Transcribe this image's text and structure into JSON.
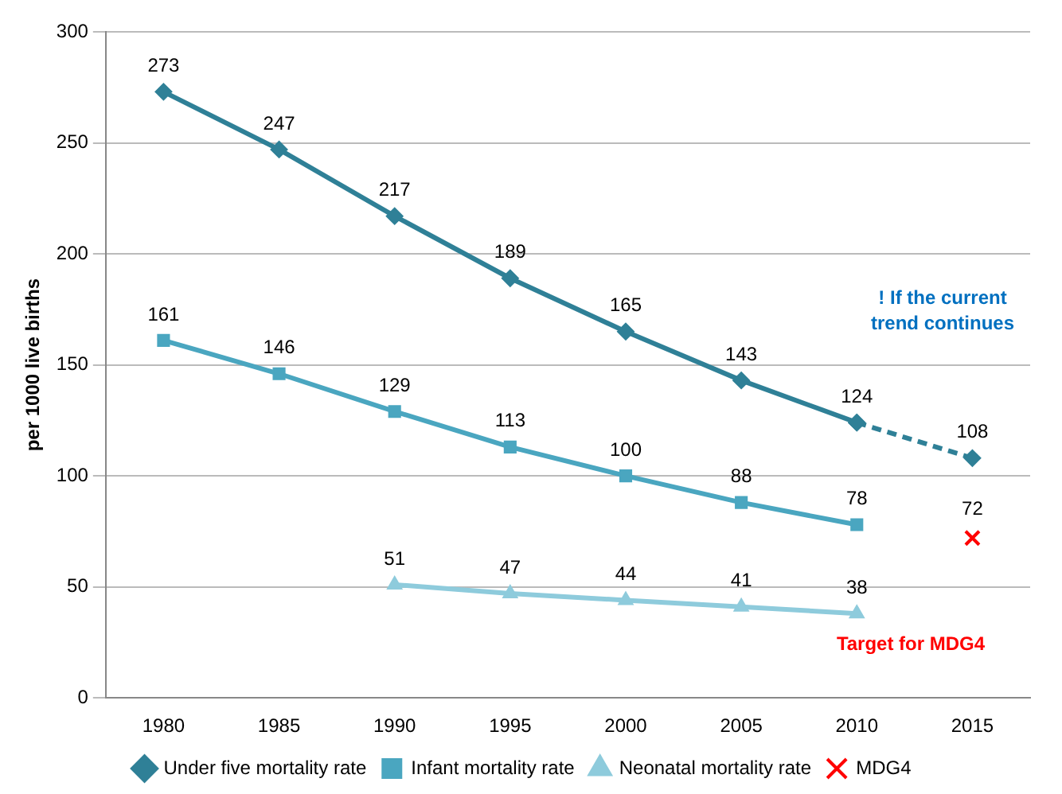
{
  "chart_data": {
    "type": "line",
    "ylabel": "per 1000 live births",
    "categories": [
      "1980",
      "1985",
      "1990",
      "1995",
      "2000",
      "2005",
      "2010",
      "2015"
    ],
    "ylim": [
      0,
      300
    ],
    "yticks": [
      0,
      50,
      100,
      150,
      200,
      250,
      300
    ],
    "grid": "y",
    "legend": "bottom",
    "data_labels": true,
    "series": [
      {
        "name": "Under five mortality rate",
        "color": "#2f8097",
        "marker": "diamond",
        "line_style": "solid",
        "values": [
          273,
          247,
          217,
          189,
          165,
          143,
          124,
          null
        ]
      },
      {
        "name": "Infant mortality rate",
        "color": "#4aa6c0",
        "marker": "square",
        "line_style": "solid",
        "values": [
          161,
          146,
          129,
          113,
          100,
          88,
          78,
          null
        ]
      },
      {
        "name": "Neonatal mortality rate",
        "color": "#8ecbdc",
        "marker": "triangle",
        "line_style": "solid",
        "values": [
          null,
          null,
          51,
          47,
          44,
          41,
          38,
          null
        ]
      },
      {
        "color": "#2f8097",
        "marker": "diamond",
        "line_style": "dashed",
        "values": [
          null,
          null,
          null,
          null,
          null,
          null,
          124,
          108
        ],
        "value_labels": [
          null,
          null,
          null,
          null,
          null,
          null,
          null,
          "108"
        ]
      },
      {
        "name": "MDG4",
        "type": "scatter",
        "color": "#ff0000",
        "marker": "cross",
        "values": [
          null,
          null,
          null,
          null,
          null,
          null,
          null,
          72
        ]
      }
    ],
    "annotations": [
      "! If the current trend continues",
      "Target for MDG4"
    ]
  }
}
